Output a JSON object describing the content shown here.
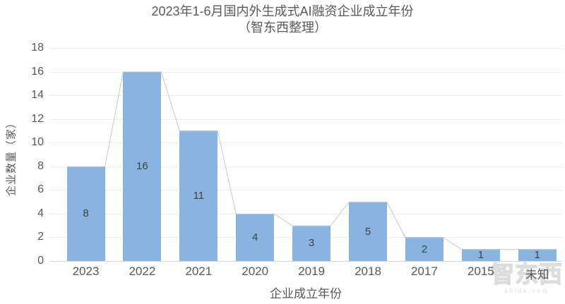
{
  "header": {
    "title_line1": "2023年1-6月国内外生成式AI融资企业成立年份",
    "title_line2": "（智东西整理）"
  },
  "chart_data": {
    "type": "bar",
    "categories": [
      "2023",
      "2022",
      "2021",
      "2020",
      "2019",
      "2018",
      "2017",
      "2015",
      "未知"
    ],
    "values": [
      8,
      16,
      11,
      4,
      3,
      5,
      2,
      1,
      1
    ],
    "title": "2023年1-6月国内外生成式AI融资企业成立年份",
    "subtitle": "（智东西整理）",
    "xlabel": "企业成立年份",
    "ylabel": "企业数量（家）",
    "ylim": [
      0,
      18
    ],
    "ytick_step": 2,
    "grid": true,
    "legend": "none",
    "bar_color": "#89b4df",
    "connector_line_color": "#c9c9c9",
    "value_label_color": "#404040",
    "axis_text_color": "#595959",
    "has_connector_line": true
  },
  "watermark": {
    "logo_text": "智东西",
    "url_text": "zhidx.com"
  }
}
